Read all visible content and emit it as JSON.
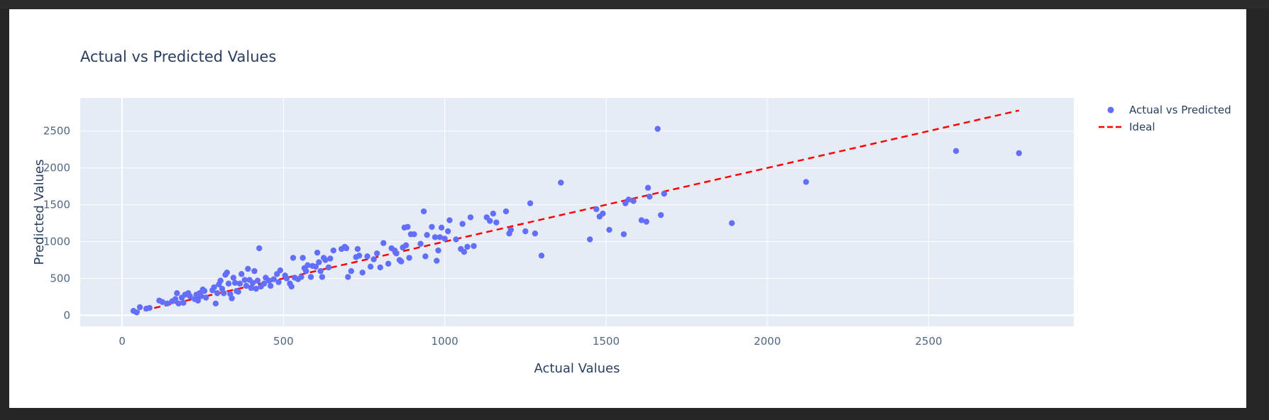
{
  "chart_data": {
    "type": "scatter",
    "title": "Actual vs Predicted Values",
    "xlabel": "Actual Values",
    "ylabel": "Predicted Values",
    "xlim": [
      -130,
      2950
    ],
    "ylim": [
      -150,
      2950
    ],
    "xticks": [
      0,
      500,
      1000,
      1500,
      2000,
      2500
    ],
    "yticks": [
      0,
      500,
      1000,
      1500,
      2000,
      2500
    ],
    "grid": true,
    "legend_position": "top-right",
    "colors": {
      "points": "#636efa",
      "ideal": "#ff0000",
      "plot_bg": "#e5ecf6",
      "grid": "#ffffff"
    },
    "series": [
      {
        "name": "Actual vs Predicted",
        "mode": "markers",
        "points": [
          [
            35,
            60
          ],
          [
            45,
            40
          ],
          [
            55,
            110
          ],
          [
            75,
            90
          ],
          [
            85,
            100
          ],
          [
            115,
            200
          ],
          [
            125,
            180
          ],
          [
            140,
            160
          ],
          [
            155,
            190
          ],
          [
            165,
            220
          ],
          [
            170,
            300
          ],
          [
            175,
            160
          ],
          [
            185,
            240
          ],
          [
            190,
            170
          ],
          [
            195,
            280
          ],
          [
            205,
            300
          ],
          [
            210,
            260
          ],
          [
            225,
            220
          ],
          [
            230,
            280
          ],
          [
            235,
            200
          ],
          [
            240,
            300
          ],
          [
            245,
            260
          ],
          [
            250,
            350
          ],
          [
            255,
            330
          ],
          [
            260,
            240
          ],
          [
            280,
            340
          ],
          [
            285,
            380
          ],
          [
            290,
            160
          ],
          [
            295,
            300
          ],
          [
            300,
            420
          ],
          [
            305,
            470
          ],
          [
            310,
            360
          ],
          [
            315,
            300
          ],
          [
            320,
            550
          ],
          [
            325,
            580
          ],
          [
            330,
            430
          ],
          [
            335,
            290
          ],
          [
            340,
            230
          ],
          [
            345,
            510
          ],
          [
            350,
            440
          ],
          [
            355,
            330
          ],
          [
            360,
            320
          ],
          [
            365,
            430
          ],
          [
            370,
            560
          ],
          [
            380,
            480
          ],
          [
            385,
            400
          ],
          [
            390,
            630
          ],
          [
            395,
            480
          ],
          [
            400,
            370
          ],
          [
            405,
            440
          ],
          [
            410,
            600
          ],
          [
            415,
            360
          ],
          [
            420,
            470
          ],
          [
            425,
            910
          ],
          [
            430,
            390
          ],
          [
            440,
            430
          ],
          [
            445,
            510
          ],
          [
            455,
            470
          ],
          [
            460,
            400
          ],
          [
            470,
            490
          ],
          [
            480,
            560
          ],
          [
            485,
            450
          ],
          [
            490,
            610
          ],
          [
            505,
            540
          ],
          [
            510,
            500
          ],
          [
            520,
            430
          ],
          [
            525,
            390
          ],
          [
            530,
            780
          ],
          [
            535,
            510
          ],
          [
            545,
            490
          ],
          [
            555,
            520
          ],
          [
            560,
            780
          ],
          [
            565,
            640
          ],
          [
            570,
            600
          ],
          [
            575,
            680
          ],
          [
            585,
            520
          ],
          [
            590,
            670
          ],
          [
            600,
            660
          ],
          [
            605,
            850
          ],
          [
            610,
            720
          ],
          [
            615,
            600
          ],
          [
            620,
            520
          ],
          [
            625,
            780
          ],
          [
            630,
            750
          ],
          [
            640,
            650
          ],
          [
            645,
            770
          ],
          [
            655,
            880
          ],
          [
            680,
            900
          ],
          [
            690,
            930
          ],
          [
            695,
            910
          ],
          [
            700,
            520
          ],
          [
            710,
            600
          ],
          [
            725,
            790
          ],
          [
            730,
            900
          ],
          [
            735,
            810
          ],
          [
            745,
            580
          ],
          [
            760,
            800
          ],
          [
            770,
            660
          ],
          [
            780,
            760
          ],
          [
            790,
            840
          ],
          [
            800,
            650
          ],
          [
            810,
            980
          ],
          [
            825,
            700
          ],
          [
            835,
            910
          ],
          [
            845,
            880
          ],
          [
            850,
            840
          ],
          [
            860,
            750
          ],
          [
            865,
            730
          ],
          [
            870,
            920
          ],
          [
            875,
            1190
          ],
          [
            880,
            950
          ],
          [
            885,
            1200
          ],
          [
            890,
            780
          ],
          [
            895,
            1100
          ],
          [
            905,
            1100
          ],
          [
            925,
            970
          ],
          [
            935,
            1410
          ],
          [
            940,
            800
          ],
          [
            945,
            1090
          ],
          [
            960,
            1200
          ],
          [
            970,
            1060
          ],
          [
            975,
            740
          ],
          [
            980,
            880
          ],
          [
            985,
            1060
          ],
          [
            990,
            1190
          ],
          [
            1000,
            1040
          ],
          [
            1010,
            1140
          ],
          [
            1015,
            1290
          ],
          [
            1035,
            1030
          ],
          [
            1050,
            900
          ],
          [
            1055,
            1240
          ],
          [
            1060,
            860
          ],
          [
            1070,
            930
          ],
          [
            1080,
            1330
          ],
          [
            1090,
            940
          ],
          [
            1130,
            1330
          ],
          [
            1140,
            1280
          ],
          [
            1150,
            1380
          ],
          [
            1160,
            1260
          ],
          [
            1190,
            1410
          ],
          [
            1200,
            1110
          ],
          [
            1205,
            1160
          ],
          [
            1250,
            1140
          ],
          [
            1265,
            1520
          ],
          [
            1280,
            1110
          ],
          [
            1300,
            810
          ],
          [
            1360,
            1800
          ],
          [
            1450,
            1030
          ],
          [
            1470,
            1440
          ],
          [
            1480,
            1340
          ],
          [
            1490,
            1380
          ],
          [
            1510,
            1160
          ],
          [
            1555,
            1100
          ],
          [
            1560,
            1520
          ],
          [
            1570,
            1570
          ],
          [
            1585,
            1550
          ],
          [
            1610,
            1290
          ],
          [
            1625,
            1270
          ],
          [
            1630,
            1730
          ],
          [
            1635,
            1610
          ],
          [
            1660,
            2530
          ],
          [
            1670,
            1360
          ],
          [
            1680,
            1650
          ],
          [
            1890,
            1250
          ],
          [
            2120,
            1810
          ],
          [
            2585,
            2230
          ],
          [
            2780,
            2200
          ]
        ]
      },
      {
        "name": "Ideal",
        "mode": "lines",
        "dash": "dash",
        "points": [
          [
            35,
            35
          ],
          [
            2780,
            2780
          ]
        ]
      }
    ]
  }
}
